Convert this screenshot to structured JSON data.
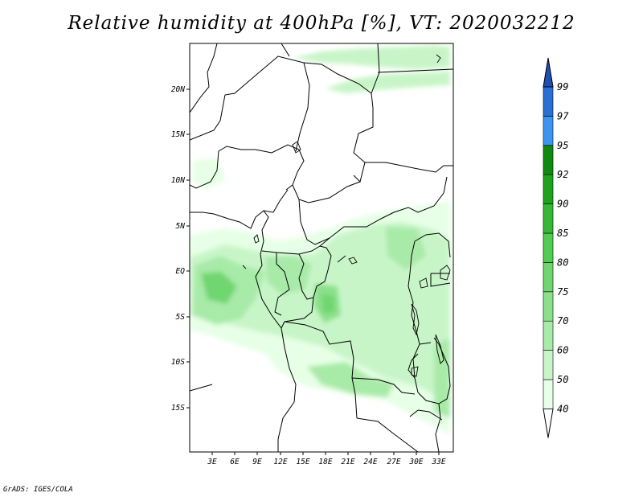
{
  "title": "Relative humidity at 400hPa [%], VT: 2020032212",
  "credit": "GrADS: IGES/COLA",
  "lat_labels": [
    "20N",
    "15N",
    "10N",
    "5N",
    "EQ",
    "5S",
    "10S",
    "15S"
  ],
  "lon_labels": [
    "3E",
    "6E",
    "9E",
    "12E",
    "15E",
    "18E",
    "21E",
    "24E",
    "27E",
    "30E",
    "33E"
  ],
  "legend": {
    "levels": [
      "40",
      "50",
      "60",
      "70",
      "75",
      "80",
      "85",
      "90",
      "92",
      "95",
      "97",
      "99"
    ],
    "colors": [
      "#ffffff",
      "#e6ffe6",
      "#c8f5c8",
      "#a8eaa8",
      "#8ce08c",
      "#6fd66f",
      "#52cc52",
      "#36b836",
      "#1fa31f",
      "#0f8a0f",
      "#3c96f0",
      "#2a6fd6",
      "#1e4fb4"
    ]
  }
}
